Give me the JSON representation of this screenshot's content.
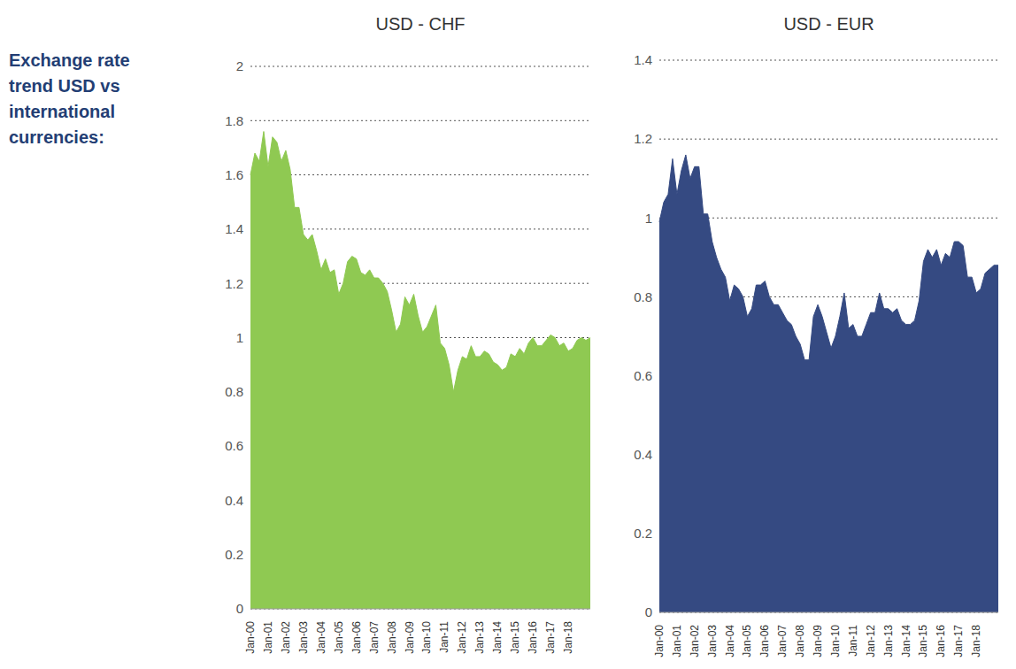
{
  "heading": "Exchange rate trend USD vs international currencies:",
  "chart_data": [
    {
      "type": "area",
      "title": "USD - CHF",
      "color": "#8fc952",
      "grid": true,
      "ylim": [
        0,
        2
      ],
      "yticks": [
        0,
        0.2,
        0.4,
        0.6,
        0.8,
        1,
        1.2,
        1.4,
        1.6,
        1.8,
        2
      ],
      "categories": [
        "Jan-00",
        null,
        null,
        null,
        "Jan-01",
        null,
        null,
        null,
        "Jan-02",
        null,
        null,
        null,
        "Jan-03",
        null,
        null,
        null,
        "Jan-04",
        null,
        null,
        null,
        "Jan-05",
        null,
        null,
        null,
        "Jan-06",
        null,
        null,
        null,
        "Jan-07",
        null,
        null,
        null,
        "Jan-08",
        null,
        null,
        null,
        "Jan-09",
        null,
        null,
        null,
        "Jan-10",
        null,
        null,
        null,
        "Jan-11",
        null,
        null,
        null,
        "Jan-12",
        null,
        null,
        null,
        "Jan-13",
        null,
        null,
        null,
        "Jan-14",
        null,
        null,
        null,
        "Jan-15",
        null,
        null,
        null,
        "Jan-16",
        null,
        null,
        null,
        "Jan-17",
        null,
        null,
        null,
        "Jan-18",
        null,
        null,
        null,
        null,
        null
      ],
      "values": [
        1.6,
        1.68,
        1.65,
        1.76,
        1.63,
        1.74,
        1.72,
        1.65,
        1.69,
        1.62,
        1.48,
        1.48,
        1.38,
        1.36,
        1.38,
        1.32,
        1.25,
        1.29,
        1.24,
        1.25,
        1.16,
        1.2,
        1.28,
        1.3,
        1.29,
        1.24,
        1.23,
        1.25,
        1.22,
        1.22,
        1.2,
        1.17,
        1.1,
        1.02,
        1.05,
        1.15,
        1.12,
        1.16,
        1.08,
        1.02,
        1.04,
        1.08,
        1.12,
        0.98,
        0.96,
        0.9,
        0.8,
        0.88,
        0.93,
        0.92,
        0.97,
        0.93,
        0.93,
        0.95,
        0.94,
        0.91,
        0.9,
        0.88,
        0.89,
        0.94,
        0.93,
        0.96,
        0.94,
        0.98,
        1.0,
        0.97,
        0.97,
        0.99,
        1.01,
        1.0,
        0.97,
        0.98,
        0.95,
        0.96,
        0.99,
        1.0,
        0.99,
        1.0
      ]
    },
    {
      "type": "area",
      "title": "USD - EUR",
      "color": "#354a82",
      "grid": true,
      "ylim": [
        0,
        1.4
      ],
      "yticks": [
        0,
        0.2,
        0.4,
        0.6,
        0.8,
        1,
        1.2,
        1.4
      ],
      "categories": [
        "Jan-00",
        null,
        null,
        null,
        "Jan-01",
        null,
        null,
        null,
        "Jan-02",
        null,
        null,
        null,
        "Jan-03",
        null,
        null,
        null,
        "Jan-04",
        null,
        null,
        null,
        "Jan-05",
        null,
        null,
        null,
        "Jan-06",
        null,
        null,
        null,
        "Jan-07",
        null,
        null,
        null,
        "Jan-08",
        null,
        null,
        null,
        "Jan-09",
        null,
        null,
        null,
        "Jan-10",
        null,
        null,
        null,
        "Jan-11",
        null,
        null,
        null,
        "Jan-12",
        null,
        null,
        null,
        "Jan-13",
        null,
        null,
        null,
        "Jan-14",
        null,
        null,
        null,
        "Jan-15",
        null,
        null,
        null,
        "Jan-16",
        null,
        null,
        null,
        "Jan-17",
        null,
        null,
        null,
        "Jan-18",
        null,
        null,
        null,
        null,
        null
      ],
      "values": [
        0.99,
        1.04,
        1.06,
        1.15,
        1.06,
        1.12,
        1.16,
        1.1,
        1.13,
        1.13,
        1.01,
        1.01,
        0.94,
        0.9,
        0.87,
        0.85,
        0.79,
        0.83,
        0.82,
        0.8,
        0.75,
        0.77,
        0.83,
        0.83,
        0.84,
        0.8,
        0.78,
        0.78,
        0.76,
        0.74,
        0.73,
        0.7,
        0.68,
        0.64,
        0.64,
        0.75,
        0.78,
        0.75,
        0.71,
        0.67,
        0.7,
        0.75,
        0.81,
        0.72,
        0.73,
        0.7,
        0.7,
        0.73,
        0.76,
        0.76,
        0.81,
        0.77,
        0.77,
        0.76,
        0.77,
        0.74,
        0.73,
        0.73,
        0.74,
        0.79,
        0.89,
        0.92,
        0.9,
        0.92,
        0.88,
        0.91,
        0.9,
        0.94,
        0.94,
        0.93,
        0.85,
        0.85,
        0.81,
        0.82,
        0.86,
        0.87,
        0.88,
        0.88
      ]
    }
  ]
}
